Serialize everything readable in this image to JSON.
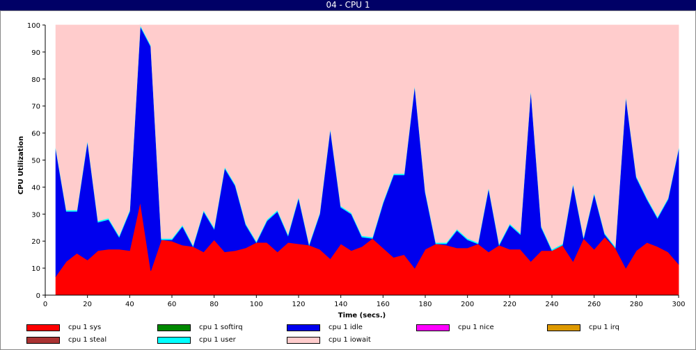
{
  "window": {
    "title": "04 - CPU 1"
  },
  "chart_data": {
    "type": "area",
    "stacked": true,
    "xlabel": "Time (secs.)",
    "ylabel": "CPU Utilization",
    "xlim": [
      0,
      300
    ],
    "ylim": [
      0,
      100
    ],
    "xticks": [
      0,
      20,
      40,
      60,
      80,
      100,
      120,
      140,
      160,
      180,
      200,
      220,
      240,
      260,
      280,
      300
    ],
    "yticks": [
      0,
      10,
      20,
      30,
      40,
      50,
      60,
      70,
      80,
      90,
      100
    ],
    "grid": false,
    "legend_position": "bottom",
    "x": [
      5,
      10,
      15,
      20,
      25,
      30,
      35,
      40,
      45,
      50,
      55,
      60,
      65,
      70,
      75,
      80,
      85,
      90,
      95,
      100,
      105,
      110,
      115,
      120,
      125,
      130,
      135,
      140,
      145,
      150,
      155,
      160,
      165,
      170,
      175,
      180,
      185,
      190,
      195,
      200,
      205,
      210,
      215,
      220,
      225,
      230,
      235,
      240,
      245,
      250,
      255,
      260,
      265,
      270,
      275,
      280,
      285,
      290,
      295,
      300
    ],
    "series": [
      {
        "name": "cpu 1 sys",
        "color": "#ff0000",
        "values": [
          7,
          12.5,
          15.5,
          13,
          16.5,
          17,
          17,
          16.5,
          34.5,
          9,
          20.5,
          20,
          18.5,
          18,
          16,
          20.5,
          16,
          16.5,
          17.5,
          19.5,
          19.5,
          16,
          19.5,
          19,
          18.5,
          17,
          13.5,
          19,
          16.5,
          18,
          21,
          17.5,
          14,
          15,
          10,
          17,
          19,
          18.5,
          17.5,
          17.5,
          19,
          16,
          18.5,
          17,
          17,
          12.5,
          16.5,
          16.5,
          18.5,
          12.5,
          21,
          17,
          21.5,
          17.5,
          10,
          16.5,
          19.5,
          18,
          16,
          11.5
        ]
      },
      {
        "name": "cpu 1 softirq",
        "color": "#008800",
        "values": [
          0,
          0,
          0,
          0,
          0,
          0,
          0,
          0,
          0,
          0,
          0,
          0,
          0,
          0,
          0,
          0,
          0,
          0,
          0,
          0,
          0,
          0,
          0,
          0,
          0,
          0,
          0,
          0,
          0,
          0,
          0,
          0,
          0,
          0,
          0,
          0,
          0,
          0,
          0,
          0,
          0,
          0,
          0,
          0,
          0,
          0,
          0,
          0,
          0,
          0,
          0,
          0,
          0,
          0,
          0,
          0,
          0,
          0,
          0,
          0
        ]
      },
      {
        "name": "cpu 1 idle",
        "color": "#0000ee",
        "values": [
          47,
          18.5,
          15.5,
          44,
          10.5,
          11,
          4.5,
          14.5,
          65,
          83,
          0,
          0.5,
          7,
          0,
          15,
          4,
          31,
          24,
          8.5,
          0,
          8,
          15,
          2.5,
          17,
          0,
          13,
          48,
          13.5,
          13.5,
          3.5,
          0,
          16.5,
          30.5,
          29.5,
          67.5,
          21,
          0,
          0.5,
          6.5,
          3,
          0,
          23.5,
          0,
          9,
          5.5,
          63.5,
          8.5,
          0,
          0,
          28.5,
          0,
          20.5,
          1,
          0,
          63.5,
          27,
          16,
          10.5,
          19.5,
          42.5
        ]
      },
      {
        "name": "cpu 1 nice",
        "color": "#ff00ff",
        "values": [
          0,
          0,
          0,
          0,
          0,
          0,
          0,
          0,
          0,
          0,
          0,
          0,
          0,
          0,
          0,
          0,
          0,
          0,
          0,
          0,
          0,
          0,
          0,
          0,
          0,
          0,
          0,
          0,
          0,
          0,
          0,
          0,
          0,
          0,
          0,
          0,
          0,
          0,
          0,
          0,
          0,
          0,
          0,
          0,
          0,
          0,
          0,
          0,
          0,
          0,
          0,
          0,
          0,
          0,
          0,
          0,
          0,
          0,
          0,
          0
        ]
      },
      {
        "name": "cpu 1 irq",
        "color": "#dd9900",
        "values": [
          0,
          0,
          0,
          0,
          0,
          0,
          0,
          0,
          0,
          0,
          0,
          0,
          0,
          0,
          0,
          0,
          0,
          0,
          0,
          0,
          0,
          0,
          0,
          0,
          0,
          0,
          0,
          0,
          0,
          0,
          0,
          0,
          0,
          0,
          0,
          0,
          0,
          0,
          0,
          0,
          0,
          0,
          0,
          0,
          0,
          0,
          0,
          0,
          0,
          0,
          0,
          0,
          0,
          0,
          0,
          0,
          0,
          0,
          0,
          0
        ]
      },
      {
        "name": "cpu 1 steal",
        "color": "#aa3333",
        "values": [
          0,
          0,
          0,
          0,
          0,
          0,
          0,
          0,
          0,
          0,
          0,
          0,
          0,
          0,
          0,
          0,
          0,
          0,
          0,
          0,
          0,
          0,
          0,
          0,
          0,
          0,
          0,
          0,
          0,
          0,
          0,
          0,
          0,
          0,
          0,
          0,
          0,
          0,
          0,
          0,
          0,
          0,
          0,
          0,
          0,
          0,
          0,
          0,
          0,
          0,
          0,
          0,
          0,
          0,
          0,
          0,
          0,
          0,
          0,
          0
        ]
      },
      {
        "name": "cpu 1 user",
        "color": "#00ffff",
        "values": [
          0.5,
          0.5,
          0.5,
          0.5,
          0.5,
          0.5,
          0.5,
          0.5,
          0.5,
          0.5,
          0.5,
          0.5,
          0.5,
          0.5,
          0.5,
          0.5,
          0.5,
          0.5,
          0.5,
          0.5,
          0.5,
          0.5,
          0.5,
          0.5,
          0.5,
          0.5,
          0.5,
          0.5,
          0.5,
          0.5,
          0.5,
          0.5,
          0.5,
          0.5,
          0.5,
          0.5,
          0.5,
          0.5,
          0.5,
          0.5,
          0.5,
          0.5,
          0.5,
          0.5,
          0.5,
          0.5,
          0.5,
          0.5,
          0.5,
          0.5,
          0.5,
          0.5,
          0.5,
          0.5,
          0.5,
          0.5,
          0.5,
          0.5,
          0.5,
          0.5
        ]
      },
      {
        "name": "cpu 1 iowait",
        "color": "#ffcccc",
        "values": [
          45.5,
          68.5,
          68.5,
          42.5,
          72.5,
          71.5,
          78,
          68.5,
          0,
          7.5,
          79,
          79,
          74,
          81.5,
          68.5,
          75,
          52.5,
          59,
          73.5,
          80,
          72,
          68.5,
          77.5,
          63.5,
          81,
          69.5,
          38,
          67,
          69.5,
          78,
          78.5,
          65.5,
          55,
          55,
          22,
          61.5,
          80.5,
          80.5,
          75.5,
          79,
          80.5,
          60,
          81,
          73.5,
          77,
          23.5,
          74.5,
          83,
          81,
          58.5,
          78.5,
          62,
          77,
          82,
          26,
          56,
          64,
          71,
          64,
          45.5
        ]
      }
    ]
  }
}
